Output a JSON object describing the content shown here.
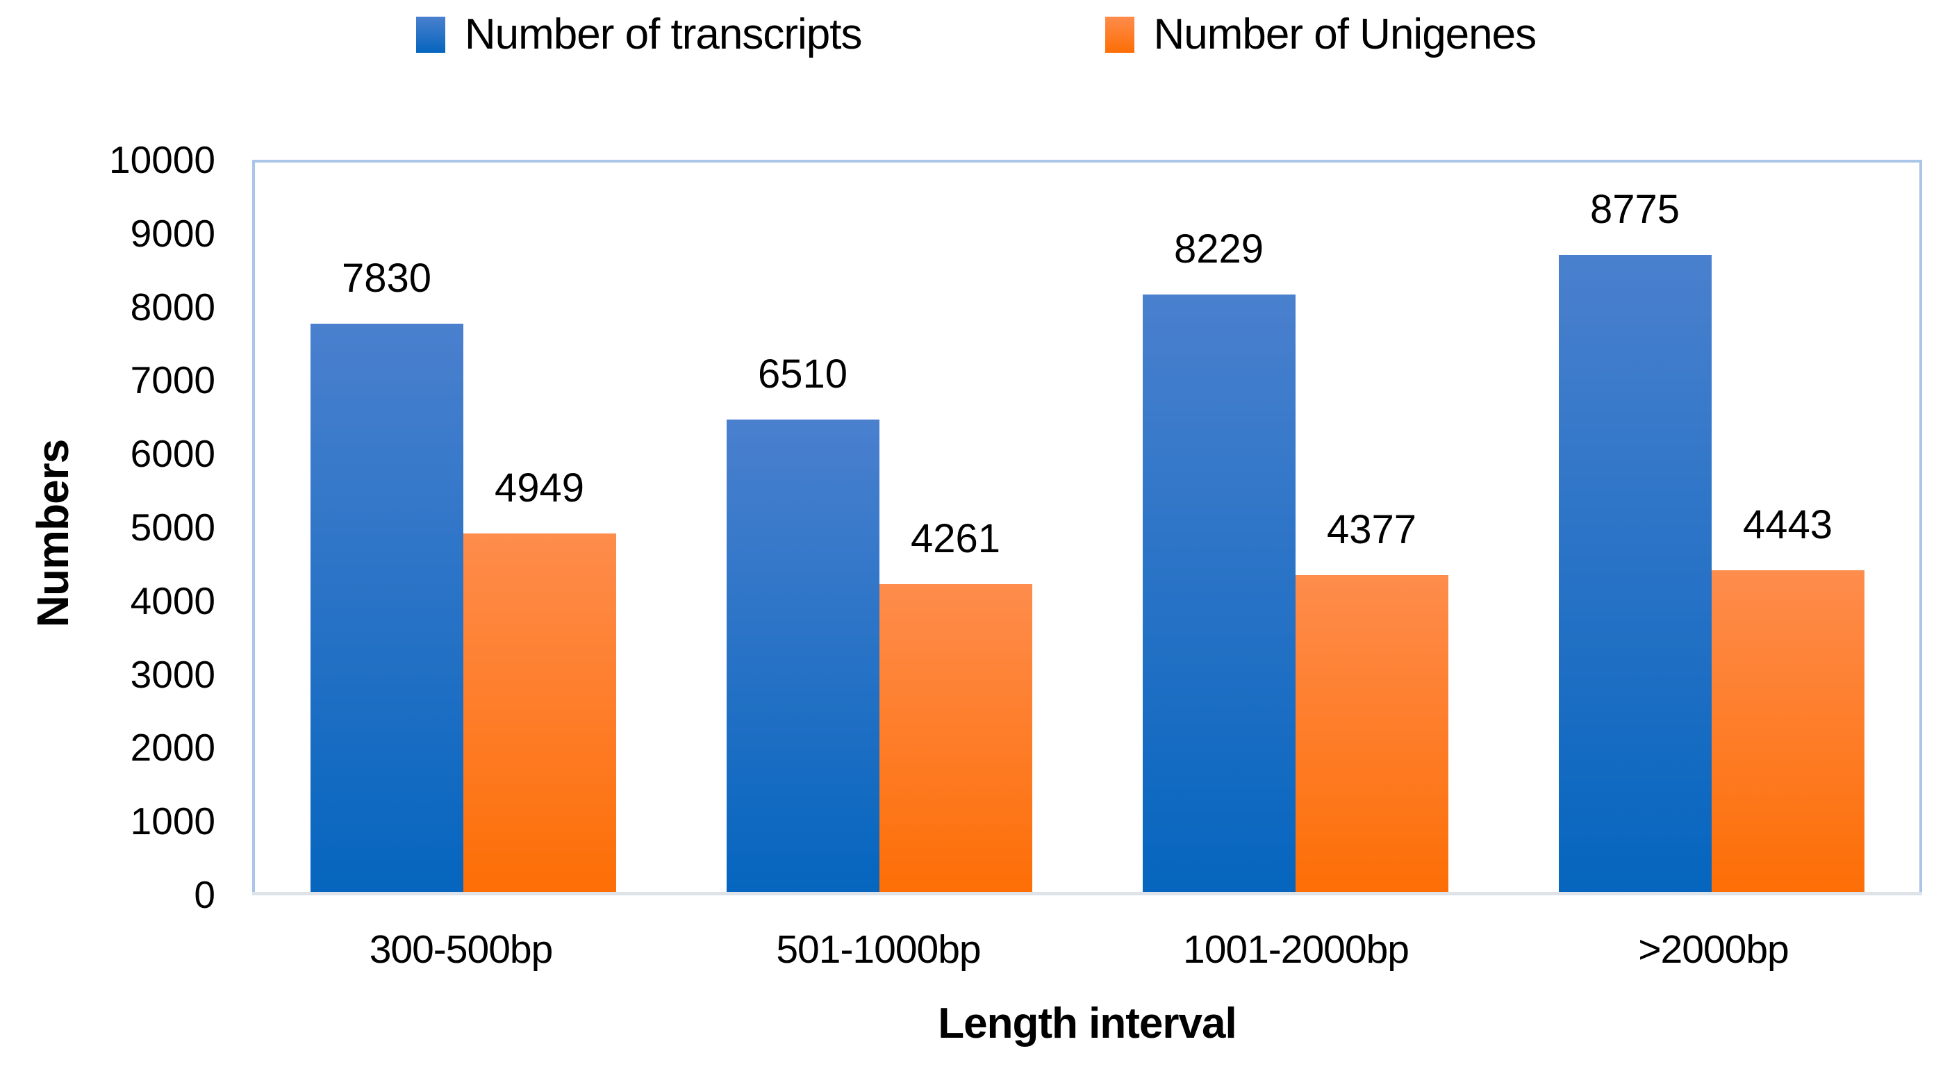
{
  "chart_data": {
    "type": "bar",
    "categories": [
      "300-500bp",
      "501-1000bp",
      "1001-2000bp",
      ">2000bp"
    ],
    "series": [
      {
        "name": "Number of transcripts",
        "values": [
          7830,
          6510,
          8229,
          8775
        ],
        "color_top": "#4a80ce",
        "color_bottom": "#0565be"
      },
      {
        "name": "Number of Unigenes",
        "values": [
          4949,
          4261,
          4377,
          4443
        ],
        "color_top": "#fe8c4c",
        "color_bottom": "#fd6e05"
      }
    ],
    "title": "",
    "xlabel": "Length interval",
    "ylabel": "Numbers",
    "ylim": [
      0,
      10000
    ],
    "ytick_step": 1000,
    "grid": false,
    "legend_position": "top-center",
    "data_labels": true,
    "plot_border_color": "#a9c5e8",
    "axis_line_color": "#dde3e9",
    "text_color": "#000000"
  }
}
